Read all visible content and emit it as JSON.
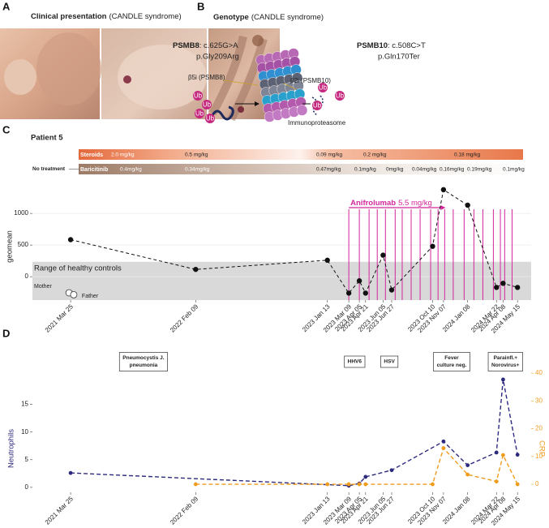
{
  "figure": {
    "panels": [
      "A",
      "B",
      "C",
      "D"
    ]
  },
  "panel_a": {
    "title": "Clinical presentation",
    "note": "(CANDLE syndrome)"
  },
  "panel_b": {
    "title": "Genotype",
    "note": "(CANDLE syndrome)",
    "variants": [
      {
        "gene": "PSMB8",
        "cdna": ": c.625G>A",
        "protein": "p.Gly209Arg"
      },
      {
        "gene": "PSMB10",
        "cdna": ": c.508C>T",
        "protein": "p.Gln170Ter"
      }
    ],
    "subunits": [
      "β5i (PSMB8)",
      "β2i (PSMB10)"
    ],
    "ubiquitin": [
      "Ub",
      "Ub",
      "Ub",
      "Ub",
      "Ub",
      "Ub",
      "Ub"
    ],
    "complex": "Immunoproteasome"
  },
  "treatments": {
    "title": "Patient 5",
    "bars": [
      {
        "name": "Steroids",
        "color": "#e4683a",
        "doses": [
          "2.0 mg/kg",
          "0.5 mg/kg",
          "0.09 mg/kg",
          "0.2 mg/kg",
          "0.18 mg/kg"
        ]
      },
      {
        "name": "Baricitinib",
        "before": "No treatment",
        "color": "#9c7a66",
        "doses": [
          "0.4mg/kg",
          "0.34mg/kg",
          "0.47mg/kg",
          "0.1mg/kg",
          "0mg/kg",
          "0.04mg/kg",
          "0.16mg/kg",
          "0.19mg/kg",
          "0.1mg/kg"
        ]
      }
    ]
  },
  "chart_data": [
    {
      "type": "line",
      "ylabel": "geomean",
      "color": "#111111",
      "x": [
        "2021-03-25",
        "2022-02-09",
        "2023-01-13",
        "2023-03-09",
        "2023-04-05",
        "2023-04-21",
        "2023-06-05",
        "2023-06-27",
        "2023-10-10",
        "2023-11-07",
        "2024-01-08",
        "2024-03-22",
        "2024-04-08",
        "2024-05-15"
      ],
      "values": [
        585,
        115,
        260,
        -260,
        -65,
        -260,
        340,
        -210,
        480,
        1375,
        1130,
        -170,
        -105,
        -170
      ],
      "xlim": [
        "2020-12-17",
        "2024-06-19"
      ],
      "xticks": [
        {
          "value": "2021-03-25",
          "label": "2021 Mar 25"
        },
        {
          "value": "2022-02-09",
          "label": "2022 Feb 09"
        },
        {
          "value": "2023-01-13",
          "label": "2023 Jan 13"
        },
        {
          "value": "2023-03-09",
          "label": "2023 Mar 09"
        },
        {
          "value": "2023-04-05",
          "label": "2023 Apr 05"
        },
        {
          "value": "2023-04-21",
          "label": "2023 Apr 21"
        },
        {
          "value": "2023-06-05",
          "label": "2023 Jun 05"
        },
        {
          "value": "2023-06-27",
          "label": "2023 Jun 27"
        },
        {
          "value": "2023-10-10",
          "label": "2023 Oct 10"
        },
        {
          "value": "2023-11-07",
          "label": "2023 Nov 07"
        },
        {
          "value": "2024-01-08",
          "label": "2024 Jan 08"
        },
        {
          "value": "2024-03-22",
          "label": "2024 Mar 22"
        },
        {
          "value": "2024-04-08",
          "label": "2024 Apr 08"
        },
        {
          "value": "2024-05-15",
          "label": "2024 May 15"
        }
      ],
      "ylim": [
        -370,
        1450
      ],
      "yticks": [
        0,
        500,
        1000
      ],
      "grid": true,
      "band": {
        "label": "Range of healthy controls",
        "from": -370,
        "to": 235,
        "color": "#d9d9d9"
      },
      "controls": {
        "labels": [
          "Mother",
          "Father"
        ],
        "x": [
          "2021-03-21",
          "2021-04-02"
        ],
        "values": [
          -255,
          -285
        ]
      },
      "infusions": {
        "label": "Anifrolumab",
        "dose": "5.5 mg/kg",
        "color": "#d3269c",
        "x": [
          "2023-03-09",
          "2023-04-05",
          "2023-04-30",
          "2023-05-21",
          "2023-06-11",
          "2023-07-06",
          "2023-07-24",
          "2023-08-16",
          "2023-09-08",
          "2023-10-05",
          "2023-10-24",
          "2023-11-10",
          "2023-12-02",
          "2023-12-30",
          "2024-01-24",
          "2024-02-16",
          "2024-03-14",
          "2024-04-01",
          "2024-04-12",
          "2024-05-01"
        ]
      }
    },
    {
      "type": "line",
      "xlim": [
        "2020-12-17",
        "2024-06-19"
      ],
      "xticks": [
        {
          "value": "2021-03-25",
          "label": "2021 Mar 25"
        },
        {
          "value": "2022-02-09",
          "label": "2022 Feb 09"
        },
        {
          "value": "2023-01-13",
          "label": "2023 Jan 13"
        },
        {
          "value": "2023-03-09",
          "label": "2023 Mar 09"
        },
        {
          "value": "2023-04-05",
          "label": "2023 Apr 05"
        },
        {
          "value": "2023-04-21",
          "label": "2023 Apr 21"
        },
        {
          "value": "2023-06-05",
          "label": "2023 Jun 05"
        },
        {
          "value": "2023-06-27",
          "label": "2023 Jun 27"
        },
        {
          "value": "2023-10-10",
          "label": "2023 Oct 10"
        },
        {
          "value": "2023-11-07",
          "label": "2023 Nov 07"
        },
        {
          "value": "2024-01-08",
          "label": "2024 Jan 08"
        },
        {
          "value": "2024-03-22",
          "label": "2024 Mar 22"
        },
        {
          "value": "2024-04-08",
          "label": "2024 Apr 08"
        },
        {
          "value": "2024-05-15",
          "label": "2024 May 15"
        }
      ],
      "ylim": [
        -0.9,
        21.4
      ],
      "yticks": [
        0,
        5,
        10,
        15
      ],
      "y2lim": [
        -2.9,
        41.5
      ],
      "y2ticks": [
        0,
        10,
        20,
        30,
        40
      ],
      "grid": false,
      "series": [
        {
          "name": "Neutrophils",
          "color": "#2d2a7d",
          "x": [
            "2021-03-25",
            "2023-03-09",
            "2023-04-05",
            "2023-04-21",
            "2023-06-27",
            "2023-11-07",
            "2024-01-08",
            "2024-03-22",
            "2024-04-08",
            "2024-05-15"
          ],
          "values": [
            2.6,
            0.3,
            0.7,
            1.9,
            3.1,
            8.3,
            4,
            6.3,
            19.5,
            5.9
          ]
        },
        {
          "name": "CRP",
          "color": "#ef9c1e",
          "axis": "y2",
          "x": [
            "2022-02-09",
            "2023-01-13",
            "2023-03-09",
            "2023-04-05",
            "2023-04-21",
            "2023-10-10",
            "2023-11-07",
            "2024-01-08",
            "2024-03-22",
            "2024-04-08",
            "2024-05-15"
          ],
          "values": [
            0,
            0,
            0,
            0,
            0,
            0,
            13,
            3.5,
            1,
            10.5,
            0
          ]
        }
      ],
      "annotations": [
        {
          "x": "2021-09-28",
          "lines": [
            "Pneumocystis J.",
            "pneumonia"
          ]
        },
        {
          "x": "2023-03-24",
          "lines": [
            "HHV6"
          ]
        },
        {
          "x": "2023-06-21",
          "lines": [
            "HSV"
          ]
        },
        {
          "x": "2023-11-28",
          "lines": [
            "Fever",
            "culture neg."
          ]
        },
        {
          "x": "2024-04-14",
          "lines": [
            "Parainfl.+",
            "Norovirus+"
          ]
        }
      ]
    }
  ]
}
